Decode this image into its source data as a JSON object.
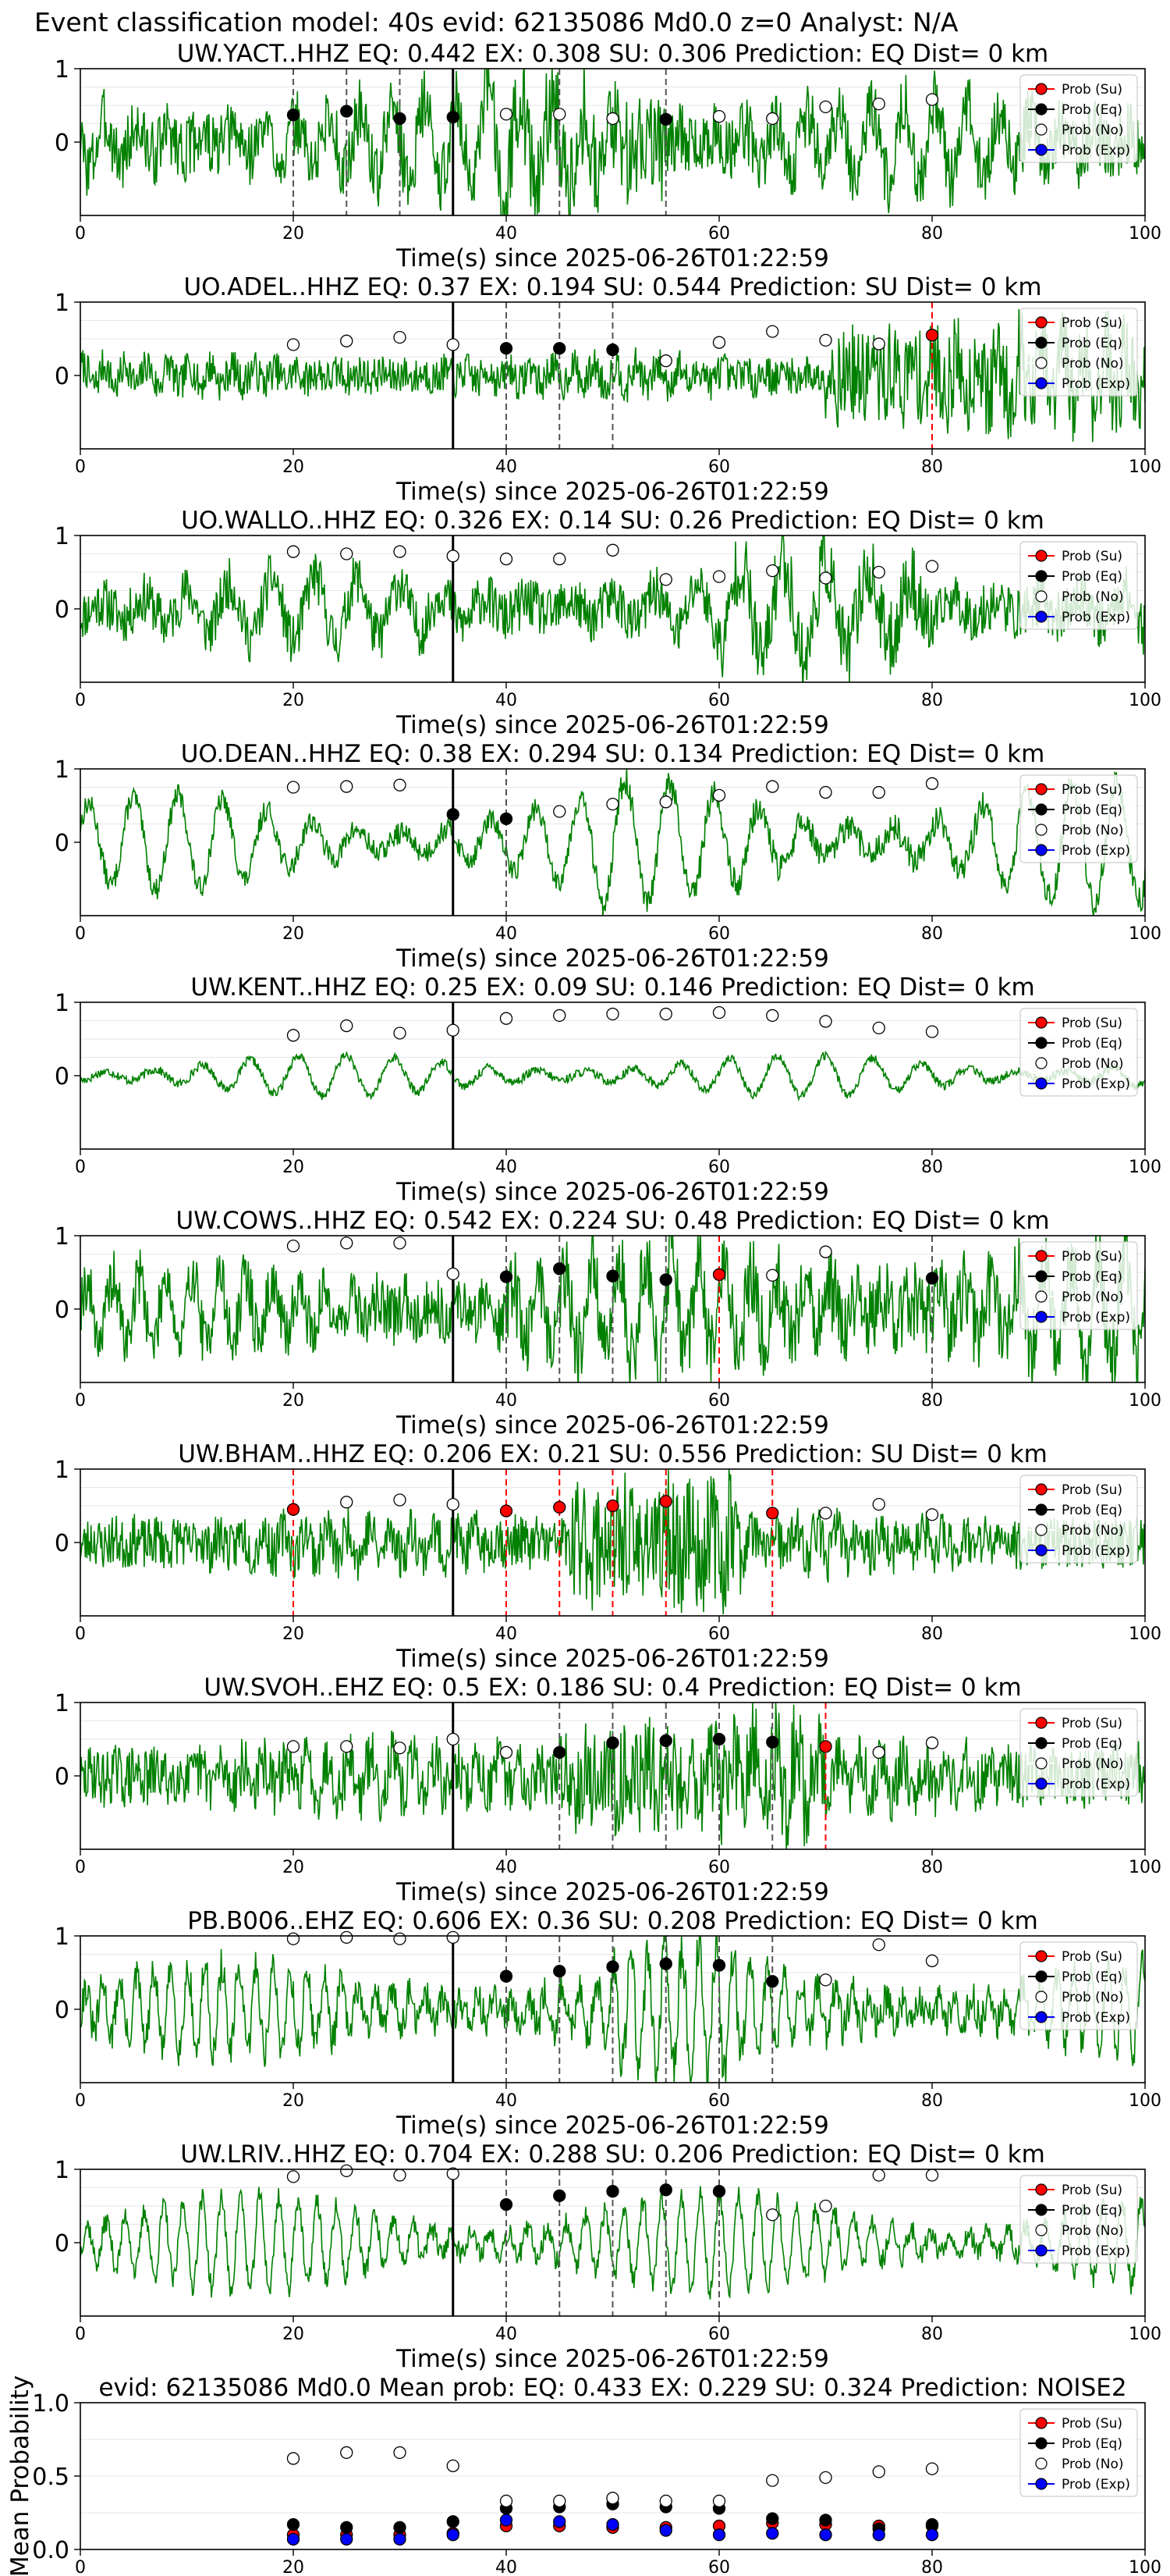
{
  "figure": {
    "title": "Event classification model: 40s evid: 62135086 Md0.0 z=0 Analyst: N/A"
  },
  "legend": {
    "entries": [
      {
        "label": "Prob (Su)",
        "color": "#ff0000"
      },
      {
        "label": "Prob (Eq)",
        "color": "#000000"
      },
      {
        "label": "Prob (No)",
        "color": "#ffffff"
      },
      {
        "label": "Prob (Exp)",
        "color": "#0000ff"
      }
    ]
  },
  "colors": {
    "trace": "#008000",
    "su": "#ff0000",
    "eq": "#000000",
    "no": "#ffffff",
    "exp": "#0000ff",
    "grid": "#e6e6e6"
  },
  "chart_data": [
    {
      "type": "line",
      "title": "UW.YACT..HHZ   EQ: 0.442  EX: 0.308  SU: 0.306   Prediction: EQ    Dist= 0 km",
      "xlabel": "Time(s) since 2025-06-26T01:22:59",
      "ylabel": "",
      "xlim": [
        0,
        100
      ],
      "ylim": [
        -1,
        1
      ],
      "xticks": [
        "0",
        "20",
        "40",
        "60",
        "80",
        "100"
      ],
      "yticks": [
        "1",
        "0"
      ],
      "marker": 35,
      "waveform": {
        "amp": 0.55,
        "noise": 0.45,
        "period": 3,
        "burst": [
          38,
          55,
          1.6
        ],
        "seed": 3
      },
      "eq_lines": [
        20,
        25,
        30,
        35,
        45,
        55
      ],
      "su_lines": [],
      "points": [
        [
          20,
          0.37,
          "eq"
        ],
        [
          25,
          0.42,
          "eq"
        ],
        [
          30,
          0.32,
          "eq"
        ],
        [
          35,
          0.34,
          "eq"
        ],
        [
          40,
          0.38,
          "no"
        ],
        [
          45,
          0.38,
          "no"
        ],
        [
          50,
          0.32,
          "no"
        ],
        [
          55,
          0.31,
          "eq"
        ],
        [
          60,
          0.35,
          "no"
        ],
        [
          65,
          0.32,
          "no"
        ],
        [
          70,
          0.48,
          "no"
        ],
        [
          75,
          0.52,
          "no"
        ],
        [
          80,
          0.58,
          "no"
        ]
      ]
    },
    {
      "type": "line",
      "title": "UO.ADEL..HHZ   EQ: 0.37  EX: 0.194  SU: 0.544   Prediction: SU    Dist= 0 km",
      "xlabel": "Time(s) since 2025-06-26T01:22:59",
      "ylabel": "",
      "xlim": [
        0,
        100
      ],
      "ylim": [
        -1,
        1
      ],
      "xticks": [
        "0",
        "20",
        "40",
        "60",
        "80",
        "100"
      ],
      "yticks": [
        "1",
        "0"
      ],
      "marker": 35,
      "waveform": {
        "amp": 0.15,
        "noise": 0.25,
        "period": 2,
        "burst": [
          70,
          100,
          2.6
        ],
        "seed": 7
      },
      "eq_lines": [
        40,
        45,
        50
      ],
      "su_lines": [
        80
      ],
      "points": [
        [
          20,
          0.42,
          "no"
        ],
        [
          25,
          0.47,
          "no"
        ],
        [
          30,
          0.52,
          "no"
        ],
        [
          35,
          0.42,
          "no"
        ],
        [
          40,
          0.37,
          "eq"
        ],
        [
          45,
          0.37,
          "eq"
        ],
        [
          50,
          0.35,
          "eq"
        ],
        [
          55,
          0.2,
          "no"
        ],
        [
          60,
          0.45,
          "no"
        ],
        [
          65,
          0.6,
          "no"
        ],
        [
          70,
          0.48,
          "no"
        ],
        [
          75,
          0.43,
          "no"
        ],
        [
          80,
          0.55,
          "su"
        ]
      ]
    },
    {
      "type": "line",
      "title": "UO.WALLO..HHZ   EQ: 0.326  EX: 0.14  SU: 0.26   Prediction: EQ    Dist= 0 km",
      "xlabel": "Time(s) since 2025-06-26T01:22:59",
      "ylabel": "",
      "xlim": [
        0,
        100
      ],
      "ylim": [
        -1,
        1
      ],
      "xticks": [
        "0",
        "20",
        "40",
        "60",
        "80",
        "100"
      ],
      "yticks": [
        "1",
        "0"
      ],
      "marker": 35,
      "waveform": {
        "amp": 0.45,
        "noise": 0.35,
        "period": 4,
        "burst": [
          60,
          80,
          1.5
        ],
        "seed": 11
      },
      "eq_lines": [],
      "su_lines": [],
      "points": [
        [
          20,
          0.78,
          "no"
        ],
        [
          25,
          0.75,
          "no"
        ],
        [
          30,
          0.78,
          "no"
        ],
        [
          35,
          0.72,
          "no"
        ],
        [
          40,
          0.68,
          "no"
        ],
        [
          45,
          0.68,
          "no"
        ],
        [
          50,
          0.8,
          "no"
        ],
        [
          55,
          0.4,
          "no"
        ],
        [
          60,
          0.44,
          "no"
        ],
        [
          65,
          0.52,
          "no"
        ],
        [
          70,
          0.42,
          "no"
        ],
        [
          75,
          0.5,
          "no"
        ],
        [
          80,
          0.58,
          "no"
        ]
      ]
    },
    {
      "type": "line",
      "title": "UO.DEAN..HHZ   EQ: 0.38  EX: 0.294  SU: 0.134   Prediction: EQ    Dist= 0 km",
      "xlabel": "Time(s) since 2025-06-26T01:22:59",
      "ylabel": "",
      "xlim": [
        0,
        100
      ],
      "ylim": [
        -1,
        1
      ],
      "xticks": [
        "0",
        "20",
        "40",
        "60",
        "80",
        "100"
      ],
      "yticks": [
        "1",
        "0"
      ],
      "marker": 35,
      "waveform": {
        "amp": 0.65,
        "noise": 0.15,
        "period": 4.2,
        "burst": [
          48,
          100,
          1.3
        ],
        "seed": 13
      },
      "eq_lines": [
        40
      ],
      "su_lines": [],
      "points": [
        [
          20,
          0.75,
          "no"
        ],
        [
          25,
          0.76,
          "no"
        ],
        [
          30,
          0.78,
          "no"
        ],
        [
          35,
          0.38,
          "eq"
        ],
        [
          40,
          0.32,
          "eq"
        ],
        [
          45,
          0.42,
          "no"
        ],
        [
          50,
          0.52,
          "no"
        ],
        [
          55,
          0.55,
          "no"
        ],
        [
          60,
          0.64,
          "no"
        ],
        [
          65,
          0.76,
          "no"
        ],
        [
          70,
          0.68,
          "no"
        ],
        [
          75,
          0.68,
          "no"
        ],
        [
          80,
          0.8,
          "no"
        ]
      ]
    },
    {
      "type": "line",
      "title": "UW.KENT..HHZ   EQ: 0.25  EX: 0.09  SU: 0.146   Prediction: EQ    Dist= 0 km",
      "xlabel": "Time(s) since 2025-06-26T01:22:59",
      "ylabel": "",
      "xlim": [
        0,
        100
      ],
      "ylim": [
        -1,
        1
      ],
      "xticks": [
        "0",
        "20",
        "40",
        "60",
        "80",
        "100"
      ],
      "yticks": [
        "1",
        "0"
      ],
      "marker": 35,
      "waveform": {
        "amp": 0.28,
        "noise": 0.06,
        "period": 4.5,
        "burst": [
          0,
          0,
          1
        ],
        "seed": 17
      },
      "eq_lines": [],
      "su_lines": [],
      "points": [
        [
          20,
          0.55,
          "no"
        ],
        [
          25,
          0.68,
          "no"
        ],
        [
          30,
          0.58,
          "no"
        ],
        [
          35,
          0.62,
          "no"
        ],
        [
          40,
          0.78,
          "no"
        ],
        [
          45,
          0.82,
          "no"
        ],
        [
          50,
          0.84,
          "no"
        ],
        [
          55,
          0.84,
          "no"
        ],
        [
          60,
          0.86,
          "no"
        ],
        [
          65,
          0.82,
          "no"
        ],
        [
          70,
          0.74,
          "no"
        ],
        [
          75,
          0.65,
          "no"
        ],
        [
          80,
          0.6,
          "no"
        ]
      ]
    },
    {
      "type": "line",
      "title": "UW.COWS..HHZ   EQ: 0.542  EX: 0.224  SU: 0.48   Prediction: EQ    Dist= 0 km",
      "xlabel": "Time(s) since 2025-06-26T01:22:59",
      "ylabel": "",
      "xlim": [
        0,
        100
      ],
      "ylim": [
        -1,
        1
      ],
      "xticks": [
        "0",
        "20",
        "40",
        "60",
        "80",
        "100"
      ],
      "yticks": [
        "1",
        "0"
      ],
      "marker": 35,
      "waveform": {
        "amp": 0.5,
        "noise": 0.4,
        "period": 2.5,
        "burst": [
          40,
          100,
          1.4
        ],
        "seed": 19
      },
      "eq_lines": [
        40,
        45,
        50,
        55,
        80
      ],
      "su_lines": [
        60
      ],
      "points": [
        [
          20,
          0.86,
          "no"
        ],
        [
          25,
          0.9,
          "no"
        ],
        [
          30,
          0.9,
          "no"
        ],
        [
          35,
          0.48,
          "no"
        ],
        [
          40,
          0.44,
          "eq"
        ],
        [
          45,
          0.55,
          "eq"
        ],
        [
          50,
          0.45,
          "eq"
        ],
        [
          55,
          0.4,
          "eq"
        ],
        [
          60,
          0.47,
          "su"
        ],
        [
          65,
          0.46,
          "no"
        ],
        [
          70,
          0.78,
          "no"
        ],
        [
          80,
          0.42,
          "eq"
        ]
      ]
    },
    {
      "type": "line",
      "title": "UW.BHAM..HHZ   EQ: 0.206  EX: 0.21  SU: 0.556   Prediction: SU    Dist= 0 km",
      "xlabel": "Time(s) since 2025-06-26T01:22:59",
      "ylabel": "",
      "xlim": [
        0,
        100
      ],
      "ylim": [
        -1,
        1
      ],
      "xticks": [
        "0",
        "20",
        "40",
        "60",
        "80",
        "100"
      ],
      "yticks": [
        "1",
        "0"
      ],
      "marker": 35,
      "waveform": {
        "amp": 0.2,
        "noise": 0.35,
        "period": 2,
        "burst": [
          46,
          62,
          2.4
        ],
        "seed": 23
      },
      "eq_lines": [],
      "su_lines": [
        20,
        40,
        45,
        50,
        55,
        65
      ],
      "points": [
        [
          20,
          0.45,
          "su"
        ],
        [
          25,
          0.55,
          "no"
        ],
        [
          30,
          0.58,
          "no"
        ],
        [
          35,
          0.52,
          "no"
        ],
        [
          40,
          0.43,
          "su"
        ],
        [
          45,
          0.48,
          "su"
        ],
        [
          50,
          0.5,
          "su"
        ],
        [
          55,
          0.56,
          "su"
        ],
        [
          65,
          0.4,
          "su"
        ],
        [
          70,
          0.4,
          "no"
        ],
        [
          75,
          0.52,
          "no"
        ],
        [
          80,
          0.38,
          "no"
        ]
      ]
    },
    {
      "type": "line",
      "title": "UW.SVOH..EHZ   EQ: 0.5  EX: 0.186  SU: 0.4   Prediction: EQ    Dist= 0 km",
      "xlabel": "Time(s) since 2025-06-26T01:22:59",
      "ylabel": "",
      "xlim": [
        0,
        100
      ],
      "ylim": [
        -1,
        1
      ],
      "xticks": [
        "0",
        "20",
        "40",
        "60",
        "80",
        "100"
      ],
      "yticks": [
        "1",
        "0"
      ],
      "marker": 35,
      "waveform": {
        "amp": 0.25,
        "noise": 0.4,
        "period": 2,
        "burst": [
          45,
          70,
          1.8
        ],
        "seed": 29
      },
      "eq_lines": [
        45,
        50,
        55,
        60,
        65
      ],
      "su_lines": [
        70
      ],
      "points": [
        [
          20,
          0.4,
          "no"
        ],
        [
          25,
          0.4,
          "no"
        ],
        [
          30,
          0.38,
          "no"
        ],
        [
          35,
          0.5,
          "no"
        ],
        [
          40,
          0.32,
          "no"
        ],
        [
          45,
          0.32,
          "eq"
        ],
        [
          50,
          0.45,
          "eq"
        ],
        [
          55,
          0.48,
          "eq"
        ],
        [
          60,
          0.5,
          "eq"
        ],
        [
          65,
          0.46,
          "eq"
        ],
        [
          70,
          0.4,
          "su"
        ],
        [
          75,
          0.32,
          "no"
        ],
        [
          80,
          0.45,
          "no"
        ]
      ]
    },
    {
      "type": "line",
      "title": "PB.B006..EHZ   EQ: 0.606  EX: 0.36  SU: 0.208   Prediction: EQ    Dist= 0 km",
      "xlabel": "Time(s) since 2025-06-26T01:22:59",
      "ylabel": "",
      "xlim": [
        0,
        100
      ],
      "ylim": [
        -1,
        1
      ],
      "xticks": [
        "0",
        "20",
        "40",
        "60",
        "80",
        "100"
      ],
      "yticks": [
        "1",
        "0"
      ],
      "marker": 35,
      "waveform": {
        "amp": 0.6,
        "noise": 0.25,
        "period": 1.6,
        "burst": [
          50,
          62,
          1.4
        ],
        "seed": 31
      },
      "eq_lines": [
        40,
        45,
        50,
        55,
        60,
        65
      ],
      "su_lines": [],
      "points": [
        [
          20,
          0.96,
          "no"
        ],
        [
          25,
          0.98,
          "no"
        ],
        [
          30,
          0.96,
          "no"
        ],
        [
          35,
          0.98,
          "no"
        ],
        [
          40,
          0.45,
          "eq"
        ],
        [
          45,
          0.52,
          "eq"
        ],
        [
          50,
          0.58,
          "eq"
        ],
        [
          55,
          0.62,
          "eq"
        ],
        [
          60,
          0.6,
          "eq"
        ],
        [
          65,
          0.38,
          "eq"
        ],
        [
          70,
          0.4,
          "no"
        ],
        [
          75,
          0.88,
          "no"
        ],
        [
          80,
          0.66,
          "no"
        ]
      ]
    },
    {
      "type": "line",
      "title": "UW.LRIV..HHZ   EQ: 0.704  EX: 0.288  SU: 0.206   Prediction: EQ    Dist= 0 km",
      "xlabel": "Time(s) since 2025-06-26T01:22:59",
      "ylabel": "",
      "xlim": [
        0,
        100
      ],
      "ylim": [
        -1,
        1
      ],
      "xticks": [
        "0",
        "20",
        "40",
        "60",
        "80",
        "100"
      ],
      "yticks": [
        "1",
        "0"
      ],
      "marker": 35,
      "waveform": {
        "amp": 0.65,
        "noise": 0.15,
        "period": 1.8,
        "burst": [
          0,
          0,
          1
        ],
        "seed": 37
      },
      "eq_lines": [
        40,
        45,
        50,
        55,
        60
      ],
      "su_lines": [],
      "points": [
        [
          20,
          0.9,
          "no"
        ],
        [
          25,
          0.98,
          "no"
        ],
        [
          30,
          0.92,
          "no"
        ],
        [
          35,
          0.94,
          "no"
        ],
        [
          40,
          0.52,
          "eq"
        ],
        [
          45,
          0.64,
          "eq"
        ],
        [
          50,
          0.7,
          "eq"
        ],
        [
          55,
          0.72,
          "eq"
        ],
        [
          60,
          0.7,
          "eq"
        ],
        [
          65,
          0.38,
          "no"
        ],
        [
          70,
          0.5,
          "no"
        ],
        [
          75,
          0.92,
          "no"
        ],
        [
          80,
          0.92,
          "no"
        ]
      ]
    },
    {
      "type": "scatter",
      "title": "evid: 62135086  Md0.0   Mean prob:   EQ: 0.433  EX: 0.229  SU: 0.324   Prediction: NOISE2",
      "xlabel": "",
      "ylabel": "Mean Probability",
      "xlim": [
        0,
        100
      ],
      "ylim": [
        0,
        1
      ],
      "xticks": [
        "0",
        "20",
        "40",
        "60",
        "80",
        "100"
      ],
      "yticks": [
        "1.0",
        "0.5",
        "0.0"
      ],
      "series": [
        {
          "name": "Prob (Su)",
          "key": "su",
          "x": [
            20,
            25,
            30,
            35,
            40,
            45,
            50,
            55,
            60,
            65,
            70,
            75,
            80
          ],
          "y": [
            0.1,
            0.1,
            0.1,
            0.11,
            0.16,
            0.16,
            0.15,
            0.15,
            0.16,
            0.18,
            0.17,
            0.16,
            0.16
          ]
        },
        {
          "name": "Prob (Eq)",
          "key": "eq",
          "x": [
            20,
            25,
            30,
            35,
            40,
            45,
            50,
            55,
            60,
            65,
            70,
            75,
            80
          ],
          "y": [
            0.17,
            0.15,
            0.15,
            0.19,
            0.28,
            0.29,
            0.31,
            0.29,
            0.28,
            0.21,
            0.2,
            0.14,
            0.17
          ]
        },
        {
          "name": "Prob (No)",
          "key": "no",
          "x": [
            20,
            25,
            30,
            35,
            40,
            45,
            50,
            55,
            60,
            65,
            70,
            75,
            80
          ],
          "y": [
            0.62,
            0.66,
            0.66,
            0.57,
            0.33,
            0.33,
            0.35,
            0.33,
            0.33,
            0.47,
            0.49,
            0.53,
            0.55
          ]
        },
        {
          "name": "Prob (Exp)",
          "key": "exp",
          "x": [
            20,
            25,
            30,
            35,
            40,
            45,
            50,
            55,
            60,
            65,
            70,
            75,
            80
          ],
          "y": [
            0.07,
            0.07,
            0.07,
            0.1,
            0.2,
            0.19,
            0.17,
            0.13,
            0.1,
            0.11,
            0.1,
            0.1,
            0.1
          ]
        }
      ]
    }
  ]
}
